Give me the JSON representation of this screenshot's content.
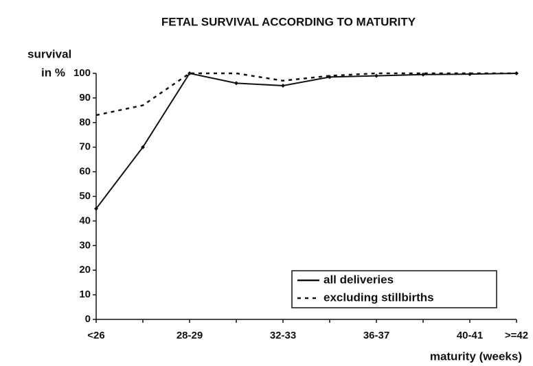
{
  "chart_data": {
    "type": "line",
    "title": "FETAL SURVIVAL ACCORDING TO MATURITY",
    "y_label": [
      "survival",
      "in %"
    ],
    "x_label": "maturity (weeks)",
    "categories": [
      "<26",
      null,
      "28-29",
      null,
      "32-33",
      null,
      "36-37",
      null,
      "40-41",
      ">=42"
    ],
    "series": [
      {
        "name": "all deliveries",
        "color": "#111111",
        "dash": "solid",
        "values": [
          45,
          70,
          100,
          96,
          95,
          98.5,
          99,
          99.5,
          99.7,
          100
        ]
      },
      {
        "name": "excluding stillbirths",
        "color": "#111111",
        "dash": "dotted",
        "values": [
          83,
          87,
          100,
          100,
          97,
          99,
          100,
          100,
          100,
          100
        ]
      }
    ],
    "ylim": [
      0,
      100
    ],
    "yticks": [
      0,
      10,
      20,
      30,
      40,
      50,
      60,
      70,
      80,
      90,
      100
    ],
    "grid": false,
    "legend": "lower right"
  }
}
